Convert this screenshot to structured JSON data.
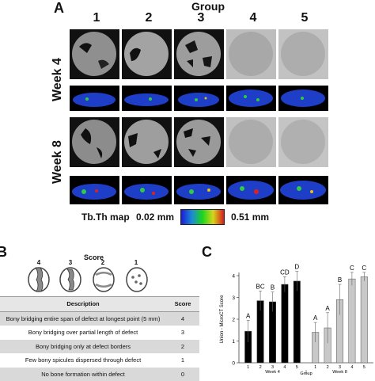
{
  "panel_a": {
    "letter": "A",
    "group_title": "Group",
    "columns": [
      "1",
      "2",
      "3",
      "4",
      "5"
    ],
    "rows": [
      "Week 4",
      "Week 8"
    ],
    "map_label": "Tb.Th map",
    "map_min": "0.02 mm",
    "map_max": "0.51 mm",
    "colors": {
      "background_ct": "#111111",
      "bone_gray": "#9a9a9a",
      "map_blue": "#1e3ec8",
      "map_green": "#2ecc40",
      "map_red": "#e02020"
    }
  },
  "panel_b": {
    "letter": "B",
    "score_title": "Score",
    "schematic_labels": [
      "4",
      "3",
      "2",
      "1"
    ],
    "table_headers": {
      "description": "Description",
      "score": "Score"
    },
    "table_rows": [
      {
        "description": "Bony bridging entire span of defect at longest point (5 mm)",
        "score": "4"
      },
      {
        "description": "Bony bridging over partial length of defect",
        "score": "3"
      },
      {
        "description": "Bony bridging only at defect borders",
        "score": "2"
      },
      {
        "description": "Few bony spicules dispersed through defect",
        "score": "1"
      },
      {
        "description": "No bone formation within defect",
        "score": "0"
      }
    ]
  },
  "panel_c": {
    "letter": "C"
  },
  "chart_data": {
    "type": "bar",
    "ylabel": "Union - MicroCT Score",
    "xlabel": "Group",
    "ylim": [
      0,
      4
    ],
    "yticks": [
      "0",
      "1",
      "2",
      "3",
      "4"
    ],
    "groups": [
      {
        "name": "Week 4",
        "categories": [
          "1",
          "2",
          "3",
          "4",
          "5"
        ],
        "values": [
          1.45,
          2.85,
          2.8,
          3.6,
          3.75
        ],
        "errors": [
          0.5,
          0.45,
          0.45,
          0.35,
          0.45
        ],
        "letters": [
          "A",
          "BC",
          "B",
          "CD",
          "D"
        ],
        "color": "#000000"
      },
      {
        "name": "Week 8",
        "categories": [
          "1",
          "2",
          "3",
          "4",
          "5"
        ],
        "values": [
          1.4,
          1.6,
          2.9,
          3.85,
          3.95
        ],
        "errors": [
          0.45,
          0.7,
          0.7,
          0.3,
          0.2
        ],
        "letters": [
          "A",
          "A",
          "B",
          "C",
          "C"
        ],
        "color": "#c8c8c8"
      }
    ]
  }
}
